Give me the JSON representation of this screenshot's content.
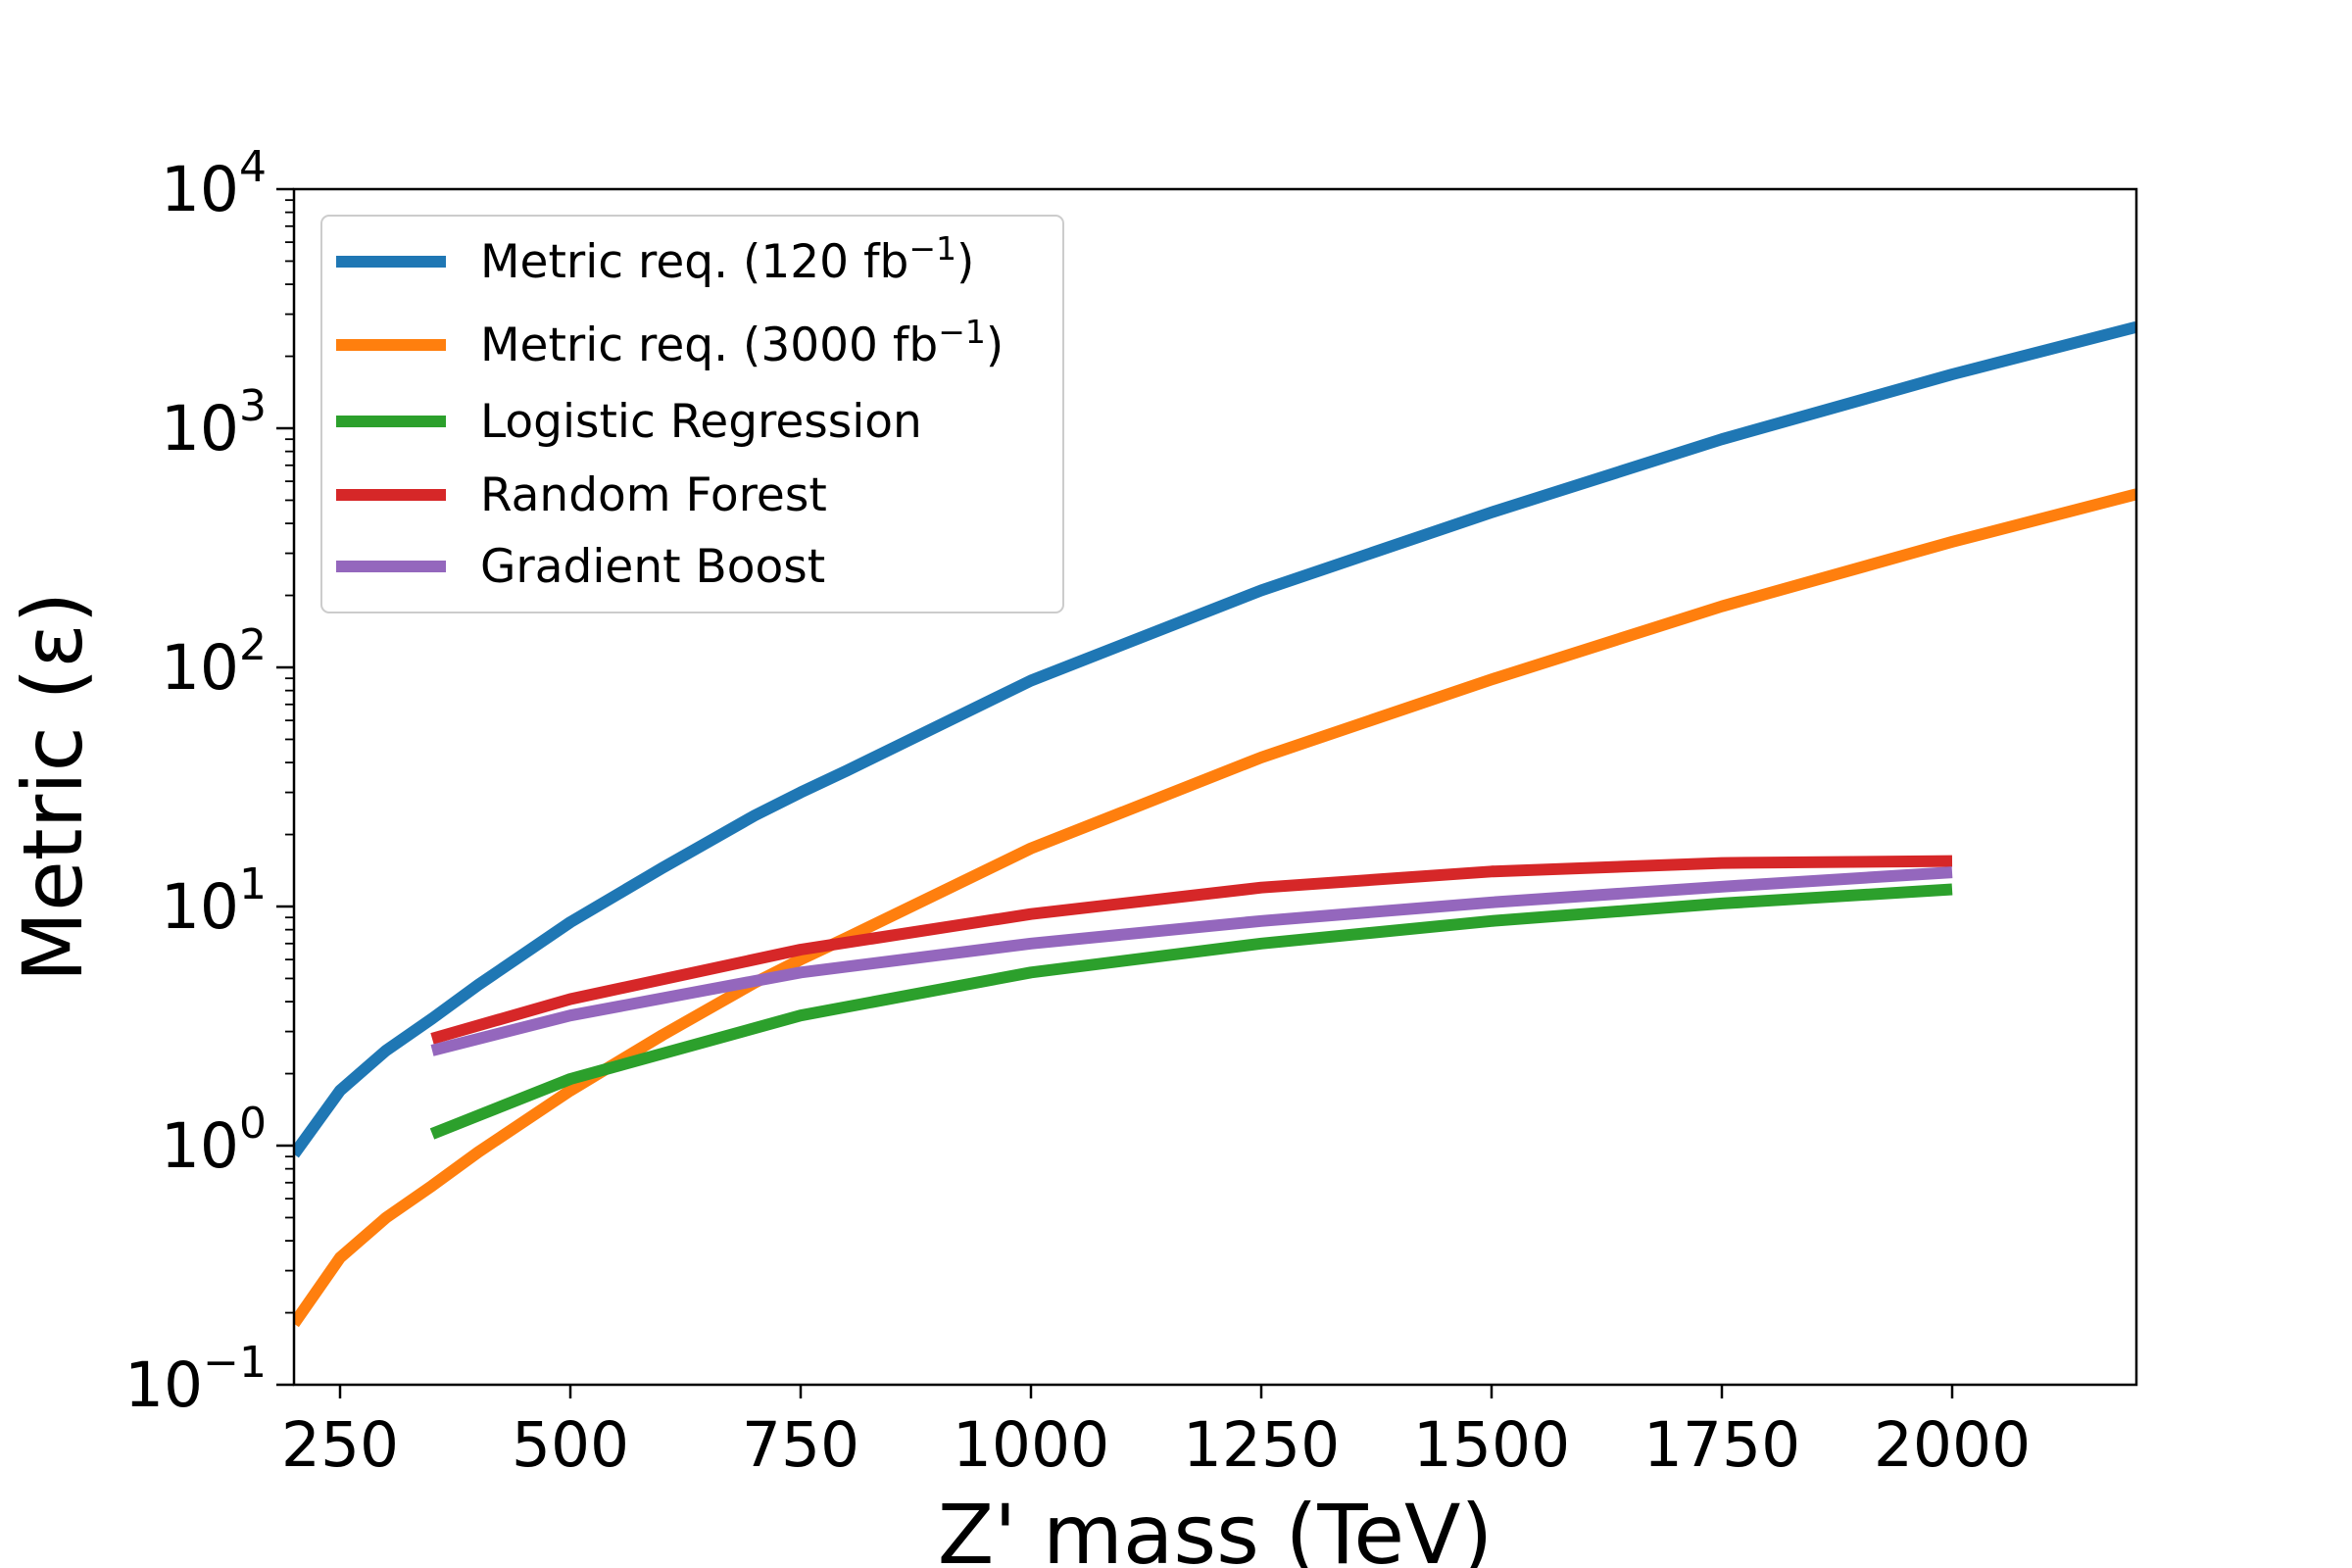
{
  "chart_data": {
    "type": "line",
    "title": "",
    "xlabel": "Z' mass (TeV)",
    "ylabel": "Metric (ε)",
    "xlim": [
      200,
      2200
    ],
    "ylim": [
      0.1,
      10000
    ],
    "yscale": "log",
    "grid": false,
    "legend_position": "top-left",
    "x_ticks": [
      250,
      500,
      750,
      1000,
      1250,
      1500,
      1750,
      2000
    ],
    "x_tick_labels": [
      "250",
      "500",
      "750",
      "1000",
      "1250",
      "1500",
      "1750",
      "2000"
    ],
    "y_ticks": [
      {
        "value": 0.1,
        "base": "10",
        "exp": "−1"
      },
      {
        "value": 1,
        "base": "10",
        "exp": "0"
      },
      {
        "value": 10,
        "base": "10",
        "exp": "1"
      },
      {
        "value": 100,
        "base": "10",
        "exp": "2"
      },
      {
        "value": 1000,
        "base": "10",
        "exp": "3"
      },
      {
        "value": 10000,
        "base": "10",
        "exp": "4"
      }
    ],
    "series": [
      {
        "name": "Metric req. (120 fb",
        "name_sup": "−1",
        "name_tail": ")",
        "color": "#1f77b4",
        "x": [
          200,
          250,
          300,
          350,
          400,
          500,
          600,
          700,
          750,
          800,
          1000,
          1250,
          1500,
          1750,
          2000,
          2200
        ],
        "y": [
          0.92,
          1.7,
          2.5,
          3.4,
          4.7,
          8.6,
          14.5,
          24,
          30,
          37,
          88,
          210,
          445,
          900,
          1680,
          2650
        ]
      },
      {
        "name": "Metric req. (3000 fb",
        "name_sup": "−1",
        "name_tail": ")",
        "color": "#ff7f0e",
        "x": [
          200,
          250,
          300,
          350,
          400,
          500,
          600,
          700,
          750,
          800,
          1000,
          1250,
          1500,
          1750,
          2000,
          2200
        ],
        "y": [
          0.18,
          0.34,
          0.5,
          0.68,
          0.94,
          1.7,
          2.9,
          4.8,
          6,
          7.4,
          17.5,
          42,
          89,
          180,
          335,
          530
        ]
      },
      {
        "name": "Logistic Regression",
        "color": "#2ca02c",
        "x": [
          350,
          500,
          750,
          1000,
          1250,
          1500,
          1750,
          2000
        ],
        "y": [
          1.12,
          1.9,
          3.5,
          5.3,
          7.0,
          8.7,
          10.3,
          11.8
        ]
      },
      {
        "name": "Random Forest",
        "color": "#d62728",
        "x": [
          350,
          500,
          750,
          1000,
          1250,
          1500,
          1750,
          2000
        ],
        "y": [
          2.8,
          4.1,
          6.6,
          9.3,
          12.0,
          14.0,
          15.2,
          15.5
        ]
      },
      {
        "name": "Gradient Boost",
        "color": "#9467bd",
        "x": [
          350,
          500,
          750,
          1000,
          1250,
          1500,
          1750,
          2000
        ],
        "y": [
          2.5,
          3.5,
          5.3,
          7.0,
          8.7,
          10.4,
          12.1,
          13.9
        ]
      }
    ]
  }
}
